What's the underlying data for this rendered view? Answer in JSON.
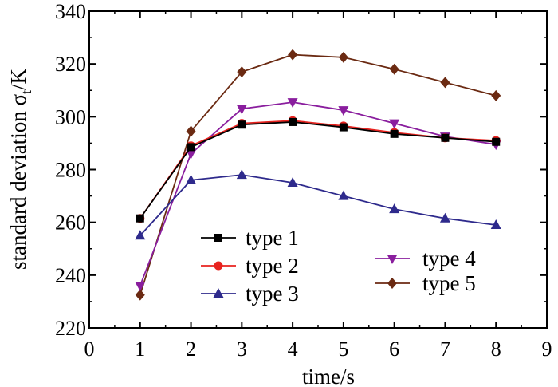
{
  "chart_data": {
    "type": "line",
    "title": "",
    "xlabel": "time/s",
    "ylabel": "standard deviation σ",
    "ylabel_subscript": "t",
    "ylabel_unit": "/K",
    "xlim": [
      0,
      9
    ],
    "ylim": [
      220,
      340
    ],
    "xticks": [
      0,
      1,
      2,
      3,
      4,
      5,
      6,
      7,
      8,
      9
    ],
    "yticks": [
      220,
      240,
      260,
      280,
      300,
      320,
      340
    ],
    "x": [
      1,
      2,
      3,
      4,
      5,
      6,
      7,
      8
    ],
    "grid": false,
    "series": [
      {
        "name": "type 1",
        "color": "#000000",
        "marker": "square",
        "values": [
          261.5,
          288.5,
          297,
          298,
          296,
          293.5,
          292,
          290.5
        ]
      },
      {
        "name": "type 2",
        "color": "#e8231f",
        "marker": "circle",
        "values": [
          261.5,
          289,
          297.5,
          298.5,
          296.5,
          294,
          292,
          291
        ]
      },
      {
        "name": "type 3",
        "color": "#2e2a8c",
        "marker": "triangle-up",
        "values": [
          255,
          276,
          278,
          275,
          270,
          265,
          261.5,
          259
        ]
      },
      {
        "name": "type 4",
        "color": "#8a1e9e",
        "marker": "triangle-down",
        "values": [
          236,
          286,
          303,
          305.5,
          302.5,
          297.5,
          292.5,
          289.5
        ]
      },
      {
        "name": "type 5",
        "color": "#6b2a12",
        "marker": "diamond",
        "values": [
          232.5,
          294.5,
          317,
          323.5,
          322.5,
          318,
          313,
          308
        ]
      }
    ],
    "legend": [
      {
        "group": "left",
        "items": [
          "type 1",
          "type 2",
          "type 3"
        ]
      },
      {
        "group": "right",
        "items": [
          "type 4",
          "type 5"
        ]
      }
    ]
  }
}
